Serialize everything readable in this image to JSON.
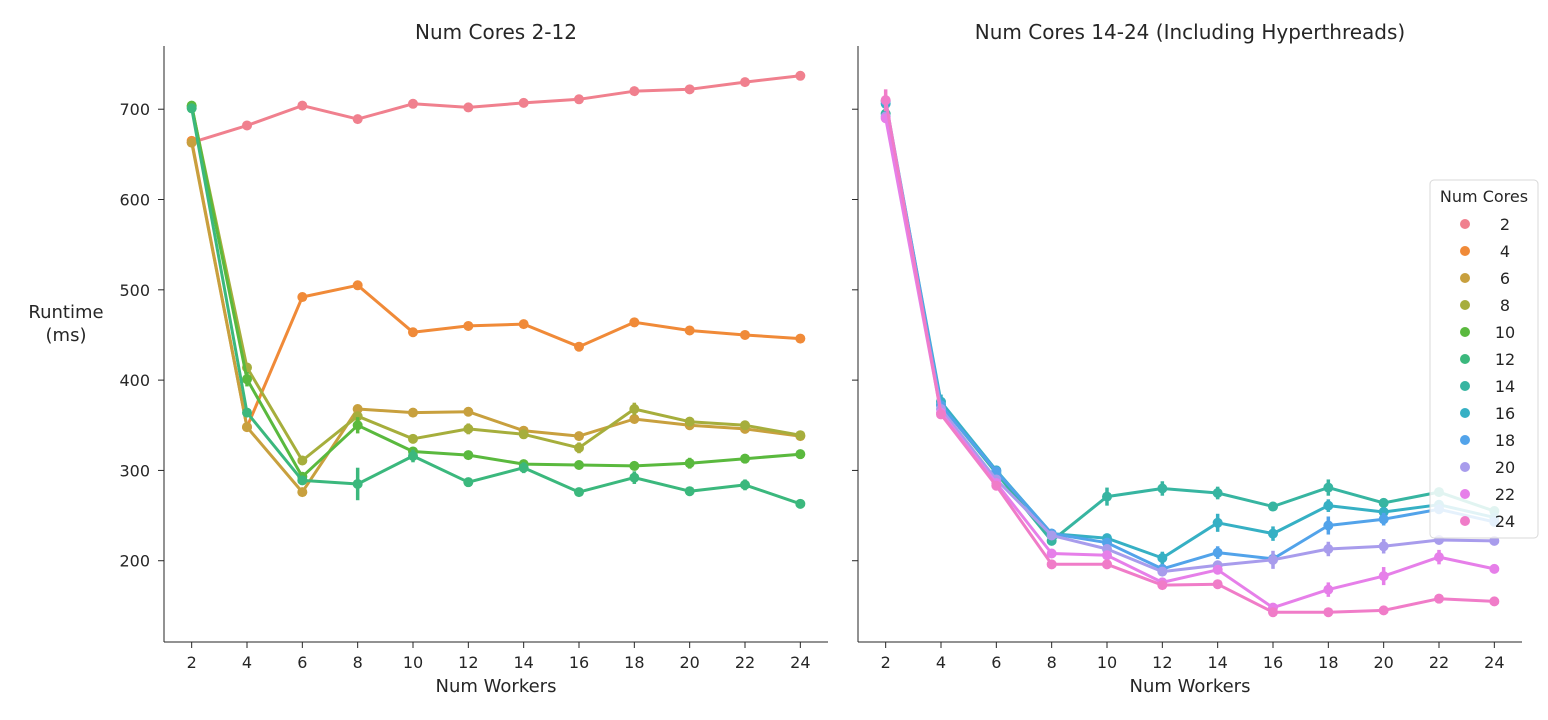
{
  "figure": {
    "ylabel_line1": "Runtime",
    "ylabel_line2": "(ms)",
    "xlabel": "Num Workers",
    "legend_title": "Num Cores"
  },
  "palette": {
    "2": "#f0808e",
    "4": "#f08a38",
    "6": "#c8a03e",
    "8": "#a6ae3c",
    "10": "#5ab93e",
    "12": "#3bb87d",
    "14": "#37b5a1",
    "16": "#36b0c4",
    "18": "#52a3ea",
    "20": "#a89cec",
    "22": "#e67fe9",
    "24": "#f07cc8"
  },
  "chart_data": [
    {
      "type": "line",
      "title": "Num Cores 2-12",
      "xlabel": "Num Workers",
      "ylabel": "Runtime (ms)",
      "categories": [
        2,
        4,
        6,
        8,
        10,
        12,
        14,
        16,
        18,
        20,
        22,
        24
      ],
      "ylim": [
        110,
        770
      ],
      "yticks": [
        200,
        300,
        400,
        500,
        600,
        700
      ],
      "legend": false,
      "series": [
        {
          "name": "2",
          "values": [
            663,
            682,
            704,
            689,
            706,
            702,
            707,
            711,
            720,
            722,
            730,
            737
          ],
          "err": [
            0,
            0,
            0,
            0,
            0,
            0,
            0,
            0,
            0,
            0,
            0,
            0
          ]
        },
        {
          "name": "4",
          "values": [
            665,
            348,
            492,
            505,
            453,
            460,
            462,
            437,
            464,
            455,
            450,
            446
          ],
          "err": [
            0,
            0,
            0,
            0,
            0,
            0,
            0,
            0,
            0,
            0,
            0,
            0
          ]
        },
        {
          "name": "6",
          "values": [
            663,
            348,
            276,
            368,
            364,
            365,
            344,
            338,
            357,
            350,
            346,
            338
          ],
          "err": [
            0,
            0,
            0,
            0,
            0,
            0,
            0,
            0,
            0,
            0,
            0,
            0
          ]
        },
        {
          "name": "8",
          "values": [
            703,
            414,
            311,
            360,
            335,
            346,
            340,
            325,
            368,
            354,
            350,
            339
          ],
          "err": [
            0,
            0,
            0,
            0,
            0,
            6,
            0,
            6,
            7,
            5,
            0,
            0
          ]
        },
        {
          "name": "10",
          "values": [
            704,
            401,
            293,
            350,
            321,
            317,
            307,
            306,
            305,
            308,
            313,
            318
          ],
          "err": [
            0,
            8,
            0,
            9,
            0,
            0,
            0,
            0,
            0,
            6,
            0,
            0
          ]
        },
        {
          "name": "12",
          "values": [
            701,
            364,
            289,
            285,
            316,
            287,
            303,
            276,
            292,
            277,
            284,
            263
          ],
          "err": [
            5,
            0,
            0,
            18,
            7,
            0,
            6,
            0,
            7,
            0,
            6,
            0
          ]
        }
      ]
    },
    {
      "type": "line",
      "title": "Num Cores 14-24 (Including Hyperthreads)",
      "xlabel": "Num Workers",
      "categories": [
        2,
        4,
        6,
        8,
        10,
        12,
        14,
        16,
        18,
        20,
        22,
        24
      ],
      "ylim": [
        110,
        770
      ],
      "legend": true,
      "legend_position": "right",
      "series": [
        {
          "name": "14",
          "values": [
            695,
            373,
            297,
            222,
            271,
            280,
            275,
            260,
            281,
            264,
            276,
            255
          ],
          "err": [
            0,
            0,
            0,
            0,
            10,
            8,
            7,
            0,
            9,
            5,
            0,
            0
          ]
        },
        {
          "name": "16",
          "values": [
            706,
            376,
            300,
            230,
            225,
            203,
            242,
            230,
            261,
            254,
            262,
            248
          ],
          "err": [
            0,
            8,
            0,
            0,
            0,
            7,
            10,
            8,
            7,
            0,
            0,
            0
          ]
        },
        {
          "name": "18",
          "values": [
            709,
            372,
            299,
            230,
            220,
            191,
            209,
            202,
            239,
            246,
            257,
            243
          ],
          "err": [
            0,
            0,
            0,
            0,
            0,
            0,
            7,
            0,
            10,
            7,
            0,
            0
          ]
        },
        {
          "name": "20",
          "values": [
            692,
            368,
            290,
            228,
            213,
            188,
            195,
            201,
            213,
            216,
            223,
            222
          ],
          "err": [
            0,
            0,
            0,
            0,
            0,
            0,
            0,
            10,
            8,
            8,
            0,
            0
          ]
        },
        {
          "name": "22",
          "values": [
            690,
            364,
            286,
            208,
            206,
            176,
            190,
            148,
            168,
            183,
            204,
            191
          ],
          "err": [
            0,
            0,
            0,
            0,
            0,
            0,
            0,
            0,
            8,
            10,
            8,
            0
          ]
        },
        {
          "name": "24",
          "values": [
            710,
            362,
            283,
            196,
            196,
            173,
            174,
            143,
            143,
            145,
            158,
            155
          ],
          "err": [
            12,
            0,
            0,
            0,
            0,
            0,
            0,
            0,
            0,
            0,
            0,
            0
          ]
        }
      ]
    }
  ]
}
